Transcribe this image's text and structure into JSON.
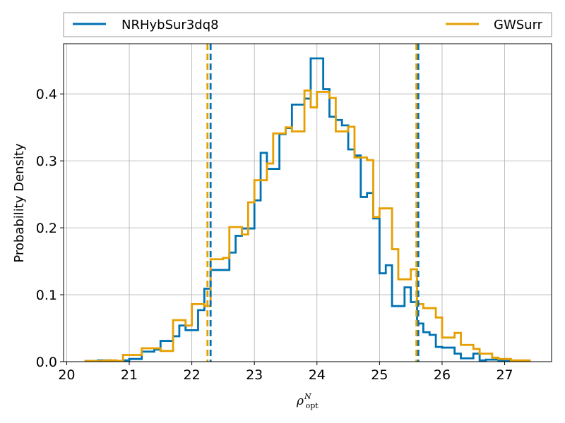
{
  "chart_data": {
    "type": "histogram",
    "title": "",
    "xlabel": "ρ",
    "xlabel_sup": "N",
    "xlabel_sub": "opt",
    "ylabel": "Probability Density",
    "xlim": [
      19.95,
      27.75
    ],
    "ylim": [
      0.0,
      0.475
    ],
    "xticks": [
      20,
      21,
      22,
      23,
      24,
      25,
      26,
      27
    ],
    "yticks": [
      0.0,
      0.1,
      0.2,
      0.3,
      0.4
    ],
    "ytick_labels": [
      "0.0",
      "0.1",
      "0.2",
      "0.3",
      "0.4"
    ],
    "grid": true,
    "legend_position": "top, outside above plot",
    "series": [
      {
        "name": "NRHybSur3dq8",
        "color": "#0072B2",
        "edges": [
          20.3,
          20.5,
          20.7,
          20.9,
          21.0,
          21.2,
          21.4,
          21.5,
          21.7,
          21.8,
          21.9,
          22.1,
          22.2,
          22.3,
          22.4,
          22.6,
          22.7,
          22.8,
          23.0,
          23.1,
          23.2,
          23.4,
          23.5,
          23.6,
          23.8,
          23.9,
          24.1,
          24.2,
          24.3,
          24.4,
          24.5,
          24.6,
          24.7,
          24.8,
          24.9,
          25.0,
          25.1,
          25.2,
          25.4,
          25.5,
          25.6,
          25.7,
          25.8,
          25.9,
          26.0,
          26.2,
          26.3,
          26.5,
          26.6,
          26.7,
          26.9,
          27.0,
          27.2,
          27.4
        ],
        "values": [
          0.001,
          0.002,
          0.001,
          0.002,
          0.004,
          0.015,
          0.018,
          0.031,
          0.038,
          0.054,
          0.047,
          0.077,
          0.109,
          0.137,
          0.137,
          0.163,
          0.188,
          0.199,
          0.241,
          0.312,
          0.288,
          0.34,
          0.349,
          0.384,
          0.393,
          0.453,
          0.407,
          0.366,
          0.361,
          0.353,
          0.317,
          0.308,
          0.246,
          0.252,
          0.214,
          0.132,
          0.144,
          0.083,
          0.111,
          0.089,
          0.057,
          0.044,
          0.04,
          0.022,
          0.021,
          0.012,
          0.005,
          0.012,
          0.002,
          0.003,
          0.002,
          0.001,
          0.001
        ]
      },
      {
        "name": "GWSurr",
        "color": "#E69F00",
        "edges": [
          20.3,
          20.6,
          20.8,
          20.9,
          21.1,
          21.2,
          21.5,
          21.7,
          21.9,
          22.0,
          22.2,
          22.3,
          22.5,
          22.6,
          22.8,
          22.9,
          23.0,
          23.2,
          23.3,
          23.5,
          23.6,
          23.8,
          23.9,
          24.0,
          24.2,
          24.3,
          24.5,
          24.6,
          24.8,
          24.9,
          25.0,
          25.2,
          25.3,
          25.5,
          25.6,
          25.7,
          25.9,
          26.0,
          26.2,
          26.3,
          26.5,
          26.6,
          26.8,
          26.9,
          27.1,
          27.4
        ],
        "values": [
          0.001,
          0.002,
          0.001,
          0.01,
          0.01,
          0.02,
          0.016,
          0.062,
          0.054,
          0.086,
          0.083,
          0.153,
          0.155,
          0.201,
          0.19,
          0.238,
          0.271,
          0.296,
          0.341,
          0.35,
          0.344,
          0.405,
          0.38,
          0.403,
          0.394,
          0.344,
          0.351,
          0.305,
          0.301,
          0.216,
          0.229,
          0.168,
          0.123,
          0.138,
          0.086,
          0.08,
          0.066,
          0.036,
          0.043,
          0.025,
          0.019,
          0.012,
          0.006,
          0.004,
          0.002
        ]
      }
    ],
    "vlines": [
      {
        "series": "NRHybSur3dq8",
        "x": 22.3,
        "color": "#0072B2",
        "style": "dashed"
      },
      {
        "series": "NRHybSur3dq8",
        "x": 25.62,
        "color": "#0072B2",
        "style": "dashed"
      },
      {
        "series": "GWSurr",
        "x": 22.25,
        "color": "#E69F00",
        "style": "dashed"
      },
      {
        "series": "GWSurr",
        "x": 25.59,
        "color": "#E69F00",
        "style": "dashed"
      }
    ]
  }
}
